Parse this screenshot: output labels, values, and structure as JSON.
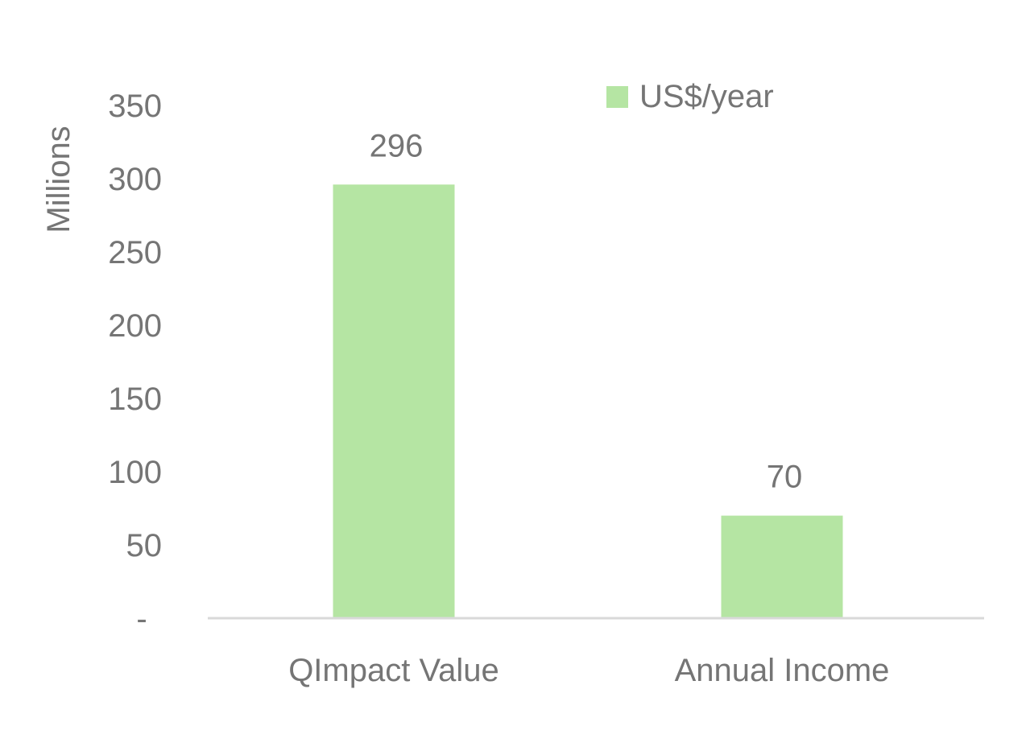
{
  "chart_data": {
    "type": "bar",
    "categories": [
      "QImpact Value",
      "Annual Income"
    ],
    "series": [
      {
        "name": "US$/year",
        "values": [
          296,
          70
        ],
        "color": "#b5e5a3"
      }
    ],
    "data_labels": [
      "296",
      "70"
    ],
    "title": "",
    "xlabel": "",
    "ylabel": "Millions",
    "ylim": [
      0,
      350
    ],
    "yticks": [
      0,
      50,
      100,
      150,
      200,
      250,
      300,
      350
    ],
    "ytick_labels": [
      "-",
      "50",
      "100",
      "150",
      "200",
      "250",
      "300",
      "350"
    ],
    "grid": false,
    "legend_position": "top"
  },
  "colors": {
    "bar": "#b5e5a3",
    "text": "#757575",
    "axis": "#d9d9d9"
  }
}
